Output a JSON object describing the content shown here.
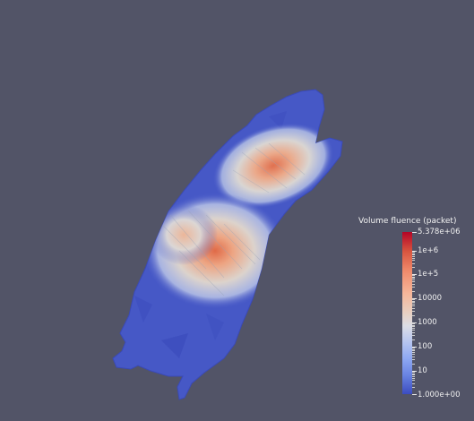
{
  "colorbar": {
    "title": "Volume fluence (packet)",
    "max_label": "5.378e+06",
    "min_label": "1.000e+00",
    "tick_labels": [
      "1e+6",
      "1e+5",
      "10000",
      "1000",
      "100",
      "10"
    ],
    "colors": [
      "#b40426",
      "#f08a6b",
      "#dcdde6",
      "#8ea8f2",
      "#3b4cc0"
    ]
  },
  "scene": {
    "background_color": "#525467",
    "object": "mouse-surface-mesh"
  }
}
